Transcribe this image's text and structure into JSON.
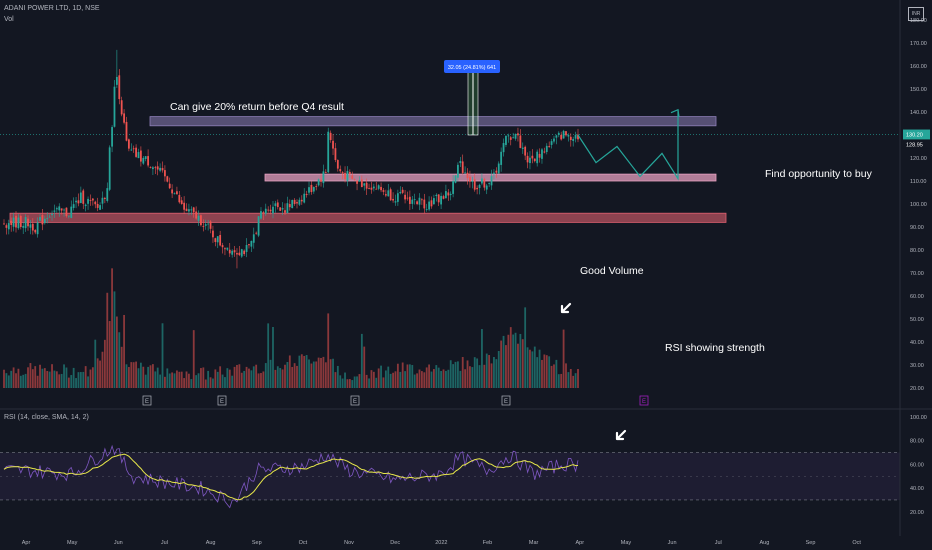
{
  "header": {
    "symbol_line": "ADANI POWER LTD, 1D, NSE",
    "vol_label": "Vol",
    "currency": "INR"
  },
  "rsi_legend": "RSI (14, close, SMA, 14, 2)",
  "annotations": {
    "return_text": "Can give 20% return before Q4 result",
    "find_text": "Find opportunity to buy",
    "volume_text": "Good Volume",
    "rsi_text": "RSI showing strength",
    "measure_label": "32.05 (24.81%) 641"
  },
  "price_axis": {
    "labels": [
      "190.00",
      "180.00",
      "170.00",
      "160.00",
      "150.00",
      "140.00",
      "130.00",
      "120.00",
      "110.00",
      "100.00",
      "90.00",
      "80.00",
      "70.00",
      "60.00",
      "50.00",
      "40.00",
      "30.00",
      "20.00"
    ],
    "last_price": "130.20",
    "ref_price": "128.95"
  },
  "rsi_axis": {
    "labels": [
      "100.00",
      "80.00",
      "60.00",
      "40.00",
      "20.00"
    ]
  },
  "time_axis": {
    "labels": [
      "Apr",
      "May",
      "Jun",
      "Jul",
      "Aug",
      "Sep",
      "Oct",
      "Nov",
      "Dec",
      "2022",
      "Feb",
      "Mar",
      "Apr",
      "May",
      "Jun",
      "Jul",
      "Aug",
      "Sep",
      "Oct"
    ]
  },
  "earnings_marker": "E",
  "colors": {
    "up": "#26a69a",
    "down": "#ef5350",
    "rsi_line": "#7e57c2",
    "rsi_ma": "#e8e84a",
    "zone_top": "#8e7fb8",
    "zone_mid": "#e7a0c0",
    "zone_low": "#e06070",
    "measure": "#4caf50",
    "label_blue": "#2962ff",
    "projection": "#26a69a"
  },
  "chart_data": {
    "type": "candlestick",
    "period": "1D",
    "x_start": "2021-04",
    "x_end": "2022-10",
    "price_ylim": [
      20,
      190
    ],
    "rsi_ylim": [
      20,
      100
    ],
    "rsi_bands": [
      30,
      70
    ],
    "current_price": 130.2,
    "reference_price": 128.95,
    "zones": [
      {
        "name": "resistance",
        "low": 134,
        "high": 138
      },
      {
        "name": "support",
        "low": 110,
        "high": 113
      },
      {
        "name": "demand",
        "low": 92,
        "high": 96
      }
    ],
    "measure": {
      "from": 130,
      "to": 162,
      "change": 32.05,
      "pct": 24.81,
      "bars": 641
    },
    "projection_path": [
      130,
      118,
      125,
      112,
      122,
      111,
      141
    ],
    "anchors": [
      {
        "x": 0.0,
        "p": 92
      },
      {
        "x": 0.2,
        "p": 90
      },
      {
        "x": 0.55,
        "p": 97
      },
      {
        "x": 0.9,
        "p": 96
      },
      {
        "x": 1.2,
        "p": 103
      },
      {
        "x": 1.55,
        "p": 98
      },
      {
        "x": 1.75,
        "p": 106
      },
      {
        "x": 1.95,
        "p": 158
      },
      {
        "x": 2.2,
        "p": 123
      },
      {
        "x": 2.5,
        "p": 120
      },
      {
        "x": 2.7,
        "p": 118
      },
      {
        "x": 3.1,
        "p": 109
      },
      {
        "x": 3.4,
        "p": 98
      },
      {
        "x": 3.8,
        "p": 93
      },
      {
        "x": 4.2,
        "p": 83
      },
      {
        "x": 4.5,
        "p": 80
      },
      {
        "x": 4.85,
        "p": 80
      },
      {
        "x": 5.05,
        "p": 94
      },
      {
        "x": 5.35,
        "p": 100
      },
      {
        "x": 5.65,
        "p": 98
      },
      {
        "x": 6.1,
        "p": 105
      },
      {
        "x": 6.5,
        "p": 114
      },
      {
        "x": 6.55,
        "p": 133
      },
      {
        "x": 6.75,
        "p": 115
      },
      {
        "x": 7.1,
        "p": 110
      },
      {
        "x": 7.5,
        "p": 108
      },
      {
        "x": 7.9,
        "p": 104
      },
      {
        "x": 8.3,
        "p": 102
      },
      {
        "x": 8.7,
        "p": 100
      },
      {
        "x": 9.2,
        "p": 105
      },
      {
        "x": 9.4,
        "p": 118
      },
      {
        "x": 9.7,
        "p": 108
      },
      {
        "x": 10.1,
        "p": 110
      },
      {
        "x": 10.4,
        "p": 128
      },
      {
        "x": 10.6,
        "p": 131
      },
      {
        "x": 10.9,
        "p": 118
      },
      {
        "x": 11.3,
        "p": 125
      },
      {
        "x": 11.6,
        "p": 130
      }
    ],
    "volume_anchors": [
      {
        "x": 0.0,
        "v": 27
      },
      {
        "x": 1.5,
        "v": 26
      },
      {
        "x": 1.9,
        "v": 55
      },
      {
        "x": 2.2,
        "v": 28
      },
      {
        "x": 4.0,
        "v": 25
      },
      {
        "x": 6.5,
        "v": 33
      },
      {
        "x": 6.8,
        "v": 25
      },
      {
        "x": 9.3,
        "v": 29
      },
      {
        "x": 10.1,
        "v": 32
      },
      {
        "x": 10.5,
        "v": 43
      },
      {
        "x": 11.6,
        "v": 27
      }
    ],
    "rsi_anchors": [
      {
        "x": 0.0,
        "r": 55
      },
      {
        "x": 1.0,
        "r": 52
      },
      {
        "x": 1.9,
        "r": 75
      },
      {
        "x": 2.3,
        "r": 50
      },
      {
        "x": 3.0,
        "r": 45
      },
      {
        "x": 3.8,
        "r": 40
      },
      {
        "x": 4.5,
        "r": 28
      },
      {
        "x": 5.0,
        "r": 55
      },
      {
        "x": 6.0,
        "r": 58
      },
      {
        "x": 6.5,
        "r": 68
      },
      {
        "x": 7.0,
        "r": 55
      },
      {
        "x": 8.0,
        "r": 47
      },
      {
        "x": 9.0,
        "r": 52
      },
      {
        "x": 9.4,
        "r": 66
      },
      {
        "x": 10.0,
        "r": 55
      },
      {
        "x": 10.5,
        "r": 68
      },
      {
        "x": 11.0,
        "r": 52
      },
      {
        "x": 11.6,
        "r": 60
      }
    ],
    "xlabel": "",
    "ylabel": ""
  }
}
